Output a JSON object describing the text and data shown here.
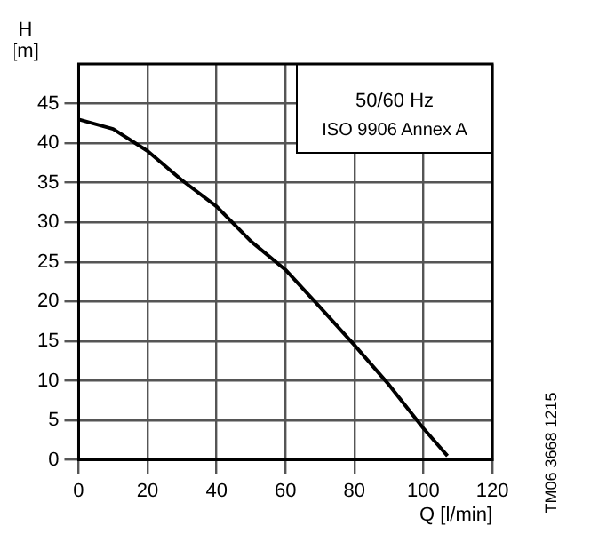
{
  "chart_data": {
    "type": "line",
    "xlabel": "Q [l/min]",
    "ylabel": "H\n[m]",
    "x": [
      0,
      10,
      20,
      30,
      40,
      50,
      60,
      70,
      80,
      90,
      100,
      107
    ],
    "series": [
      {
        "color": "#000000",
        "values": [
          43,
          41.8,
          39,
          35.3,
          32,
          27.6,
          24,
          19.3,
          14.5,
          9.5,
          4,
          0.5
        ]
      }
    ],
    "xlim": [
      0,
      120
    ],
    "xticks": [
      0,
      20,
      40,
      60,
      80,
      100,
      120
    ],
    "ylim": [
      0,
      50
    ],
    "yticks": [
      0,
      5,
      10,
      15,
      20,
      25,
      30,
      35,
      40,
      45
    ],
    "grid": true,
    "legend": false,
    "marker": "none",
    "line_style": "solid",
    "annotations": [
      "50/60 Hz",
      "ISO 9906 Annex A",
      "TM06 3668 1215"
    ]
  }
}
